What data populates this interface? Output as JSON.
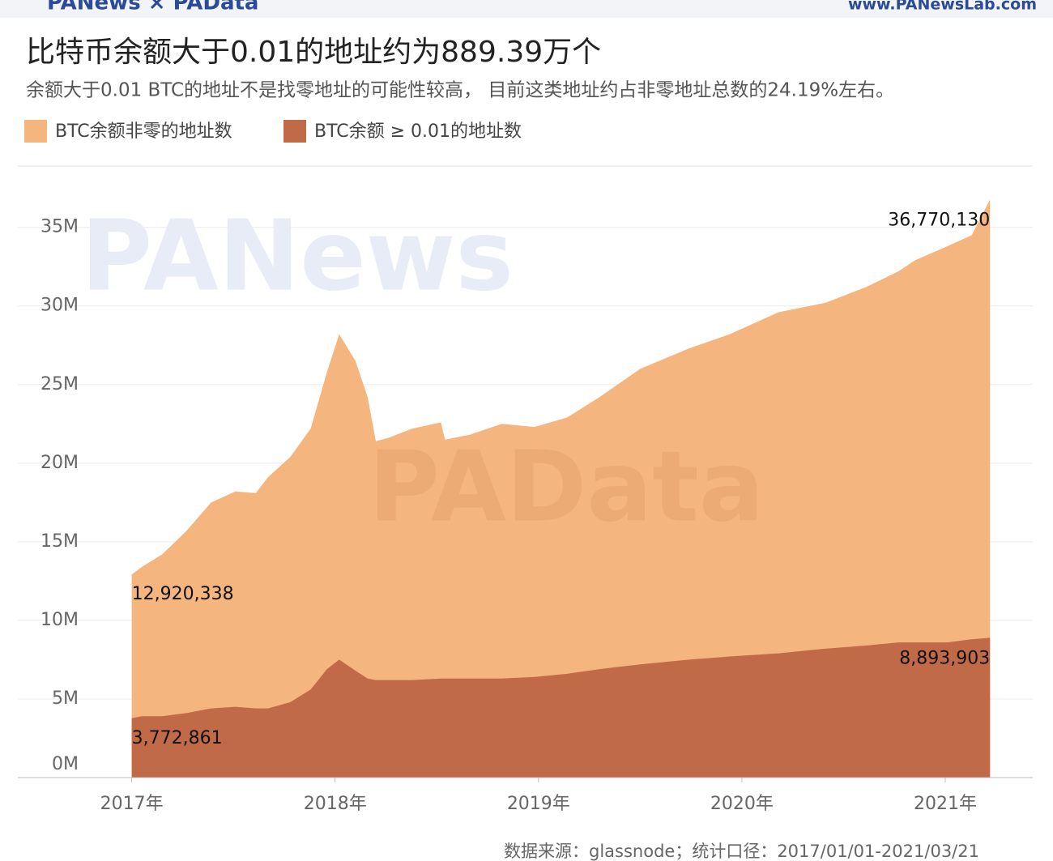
{
  "header": {
    "logo": "PANews × PAData",
    "website": "www.PANewsLab.com"
  },
  "watermarks": [
    "PANews",
    "PAData"
  ],
  "chart_data": {
    "type": "area",
    "title": "比特币余额大于0.01的地址约为889.39万个",
    "subtitle": "余额大于0.01 BTC的地址不是找零地址的可能性较高， 目前这类地址约占非零地址总数的24.19%左右。",
    "source": "数据来源：glassnode；统计口径：2017/01/01-2021/03/21",
    "x": [
      2017.0,
      2017.05,
      2017.15,
      2017.27,
      2017.39,
      2017.51,
      2017.61,
      2017.67,
      2017.78,
      2017.88,
      2017.96,
      2018.02,
      2018.1,
      2018.16,
      2018.2,
      2018.26,
      2018.38,
      2018.52,
      2018.54,
      2018.66,
      2018.82,
      2018.98,
      2019.14,
      2019.3,
      2019.5,
      2019.74,
      2019.94,
      2020.18,
      2020.41,
      2020.61,
      2020.77,
      2020.85,
      2021.01,
      2021.13,
      2021.22
    ],
    "series": [
      {
        "name": "BTC余额非零的地址数",
        "color": "#f5b57e",
        "values": [
          12920338,
          13400000,
          14200000,
          15700000,
          17500000,
          18200000,
          18100000,
          19100000,
          20400000,
          22200000,
          25800000,
          28200000,
          26500000,
          24200000,
          21400000,
          21600000,
          22200000,
          22600000,
          21500000,
          21800000,
          22500000,
          22300000,
          22900000,
          24200000,
          26000000,
          27300000,
          28200000,
          29600000,
          30200000,
          31200000,
          32200000,
          32900000,
          33800000,
          34500000,
          36770130
        ],
        "value_labels": [
          "12,920,338",
          null,
          null,
          null,
          null,
          null,
          null,
          null,
          null,
          null,
          null,
          null,
          null,
          null,
          null,
          null,
          null,
          null,
          null,
          null,
          null,
          null,
          null,
          null,
          null,
          null,
          null,
          null,
          null,
          null,
          null,
          null,
          null,
          null,
          "36,770,130"
        ]
      },
      {
        "name": "BTC余额 ≥ 0.01的地址数",
        "color": "#c16a47",
        "values": [
          3772861,
          3900000,
          3900000,
          4100000,
          4400000,
          4500000,
          4400000,
          4400000,
          4800000,
          5600000,
          6900000,
          7500000,
          6800000,
          6300000,
          6200000,
          6200000,
          6200000,
          6300000,
          6300000,
          6300000,
          6300000,
          6400000,
          6600000,
          6900000,
          7200000,
          7500000,
          7700000,
          7900000,
          8200000,
          8400000,
          8600000,
          8600000,
          8600000,
          8800000,
          8893903
        ],
        "value_labels": [
          "3,772,861",
          null,
          null,
          null,
          null,
          null,
          null,
          null,
          null,
          null,
          null,
          null,
          null,
          null,
          null,
          null,
          null,
          null,
          null,
          null,
          null,
          null,
          null,
          null,
          null,
          null,
          null,
          null,
          null,
          null,
          null,
          null,
          null,
          null,
          "8,893,903"
        ]
      }
    ],
    "xlim": [
      2016.44,
      2021.43
    ],
    "xticks": [
      {
        "value": 2017,
        "label": "2017年"
      },
      {
        "value": 2018,
        "label": "2018年"
      },
      {
        "value": 2019,
        "label": "2019年"
      },
      {
        "value": 2020,
        "label": "2020年"
      },
      {
        "value": 2021,
        "label": "2021年"
      }
    ],
    "ylim": [
      0,
      38900000
    ],
    "yticks": [
      {
        "value": 0,
        "label": "0M"
      },
      {
        "value": 5000000,
        "label": "5M"
      },
      {
        "value": 10000000,
        "label": "10M"
      },
      {
        "value": 15000000,
        "label": "15M"
      },
      {
        "value": 20000000,
        "label": "20M"
      },
      {
        "value": 25000000,
        "label": "25M"
      },
      {
        "value": 30000000,
        "label": "30M"
      },
      {
        "value": 35000000,
        "label": "35M"
      }
    ],
    "grid": true
  }
}
